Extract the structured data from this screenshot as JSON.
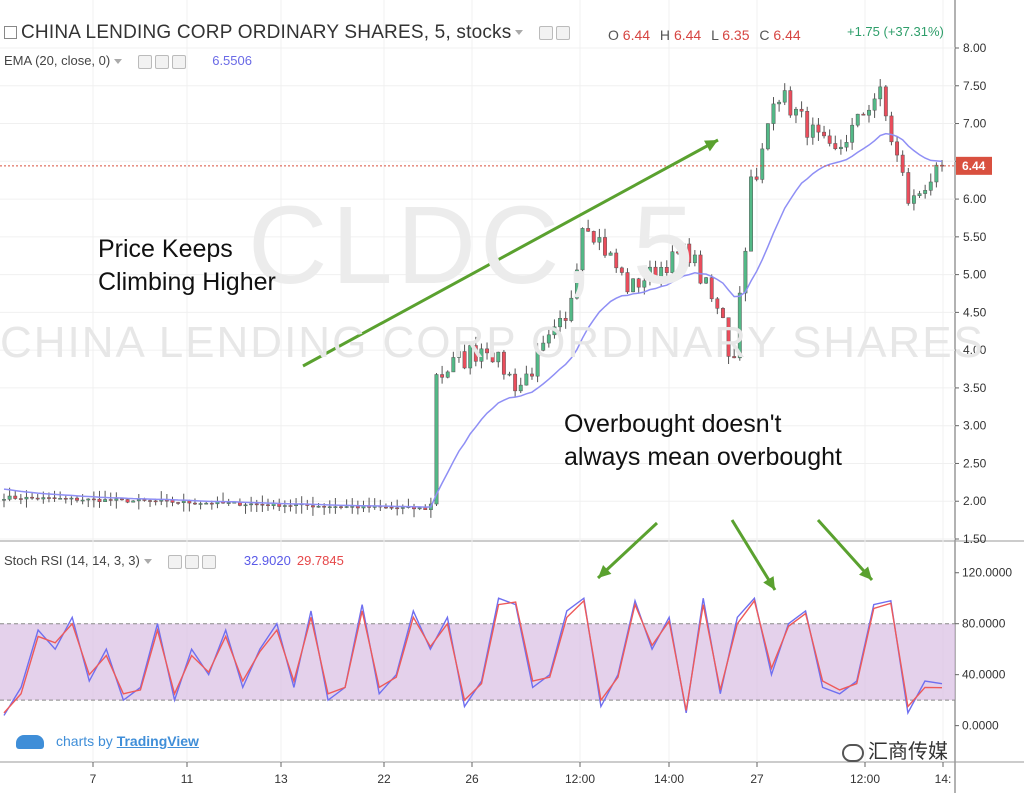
{
  "header": {
    "title": "CHINA LENDING CORP ORDINARY SHARES, 5, stocks",
    "ohlc": {
      "o_label": "O",
      "o": "6.44",
      "h_label": "H",
      "h": "6.44",
      "l_label": "L",
      "l": "6.35",
      "c_label": "C",
      "c": "6.44"
    },
    "change": "+1.75 (+37.31%)",
    "ema_label": "EMA (20, close, 0)",
    "ema_value": "6.5506"
  },
  "watermark": {
    "symbol": "CLDC, 5",
    "name": "CHINA LENDING CORP ORDINARY SHARES"
  },
  "annotations": {
    "price_line1": "Price Keeps",
    "price_line2": "Climbing Higher",
    "ob_line1": "Overbought doesn't",
    "ob_line2": "always mean overbought"
  },
  "stoch": {
    "label": "Stoch RSI (14, 14, 3, 3)",
    "k_value": "32.9020",
    "d_value": "29.7845"
  },
  "branding": {
    "charts_by": "charts by",
    "brand": "TradingView",
    "wechat": "汇商传媒"
  },
  "colors": {
    "up": "#53b987",
    "down": "#eb4d5c",
    "ema": "#8f8ff5",
    "k": "#6f6ff0",
    "d": "#ee5a5a",
    "band": "#d9bde3",
    "arrow": "#5aa12f",
    "price_line": "#d9503f"
  },
  "chart_data": [
    {
      "type": "candlestick",
      "title": "CHINA LENDING CORP ORDINARY SHARES, 5, stocks",
      "yticks": [
        "8.00",
        "7.50",
        "7.00",
        "6.50",
        "6.00",
        "5.50",
        "5.00",
        "4.50",
        "4.00",
        "3.50",
        "3.00",
        "2.50",
        "2.00",
        "1.50"
      ],
      "ylim": [
        1.5,
        8.0
      ],
      "xticks": [
        "7",
        "11",
        "13",
        "22",
        "26",
        "12:00",
        "14:00",
        "27",
        "12:00",
        "14:"
      ],
      "last_price": "6.44",
      "ema_period": 20,
      "segments": [
        {
          "from": 0,
          "to": 76,
          "start": 2.05,
          "end": 1.9,
          "noise": 0.05
        },
        {
          "from": 76,
          "to": 78,
          "start": 1.95,
          "end": 3.7,
          "noise": 0.15
        },
        {
          "from": 78,
          "to": 86,
          "start": 3.7,
          "end": 4.05,
          "noise": 0.35
        },
        {
          "from": 86,
          "to": 92,
          "start": 4.05,
          "end": 3.55,
          "noise": 0.25
        },
        {
          "from": 92,
          "to": 100,
          "start": 3.55,
          "end": 4.3,
          "noise": 0.3
        },
        {
          "from": 100,
          "to": 104,
          "start": 4.3,
          "end": 5.7,
          "noise": 0.35
        },
        {
          "from": 104,
          "to": 112,
          "start": 5.7,
          "end": 4.85,
          "noise": 0.3
        },
        {
          "from": 112,
          "to": 122,
          "start": 4.85,
          "end": 5.3,
          "noise": 0.25
        },
        {
          "from": 122,
          "to": 128,
          "start": 5.3,
          "end": 4.5,
          "noise": 0.3
        },
        {
          "from": 128,
          "to": 130,
          "start": 4.5,
          "end": 4.0,
          "noise": 0.3
        },
        {
          "from": 130,
          "to": 134,
          "start": 4.0,
          "end": 6.2,
          "noise": 0.35
        },
        {
          "from": 134,
          "to": 138,
          "start": 6.2,
          "end": 7.4,
          "noise": 0.3
        },
        {
          "from": 138,
          "to": 148,
          "start": 7.4,
          "end": 6.6,
          "noise": 0.3
        },
        {
          "from": 148,
          "to": 156,
          "start": 6.6,
          "end": 7.35,
          "noise": 0.25
        },
        {
          "from": 156,
          "to": 162,
          "start": 7.35,
          "end": 6.0,
          "noise": 0.35
        },
        {
          "from": 162,
          "to": 168,
          "start": 6.0,
          "end": 6.44,
          "noise": 0.2
        }
      ]
    },
    {
      "type": "line",
      "title": "Stoch RSI (14, 14, 3, 3)",
      "yticks": [
        "120.0000",
        "80.0000",
        "40.0000",
        "0.0000"
      ],
      "ylim": [
        -5,
        130
      ],
      "band": [
        20,
        80
      ],
      "series": [
        {
          "name": "K",
          "values": [
            8,
            30,
            75,
            60,
            85,
            35,
            60,
            20,
            30,
            80,
            20,
            60,
            40,
            75,
            30,
            60,
            80,
            30,
            90,
            20,
            30,
            95,
            25,
            40,
            90,
            60,
            85,
            15,
            35,
            100,
            95,
            30,
            40,
            90,
            100,
            15,
            40,
            98,
            60,
            85,
            10,
            100,
            25,
            85,
            100,
            40,
            80,
            90,
            30,
            25,
            35,
            95,
            98,
            10,
            35,
            32.9
          ]
        },
        {
          "name": "D",
          "values": [
            10,
            25,
            70,
            65,
            80,
            40,
            55,
            25,
            28,
            75,
            25,
            55,
            42,
            70,
            35,
            58,
            75,
            35,
            85,
            25,
            30,
            90,
            30,
            38,
            85,
            62,
            80,
            20,
            33,
            95,
            97,
            35,
            38,
            85,
            98,
            20,
            38,
            95,
            63,
            82,
            12,
            95,
            28,
            80,
            98,
            45,
            78,
            88,
            35,
            28,
            33,
            92,
            96,
            15,
            30,
            29.8
          ]
        }
      ]
    }
  ]
}
